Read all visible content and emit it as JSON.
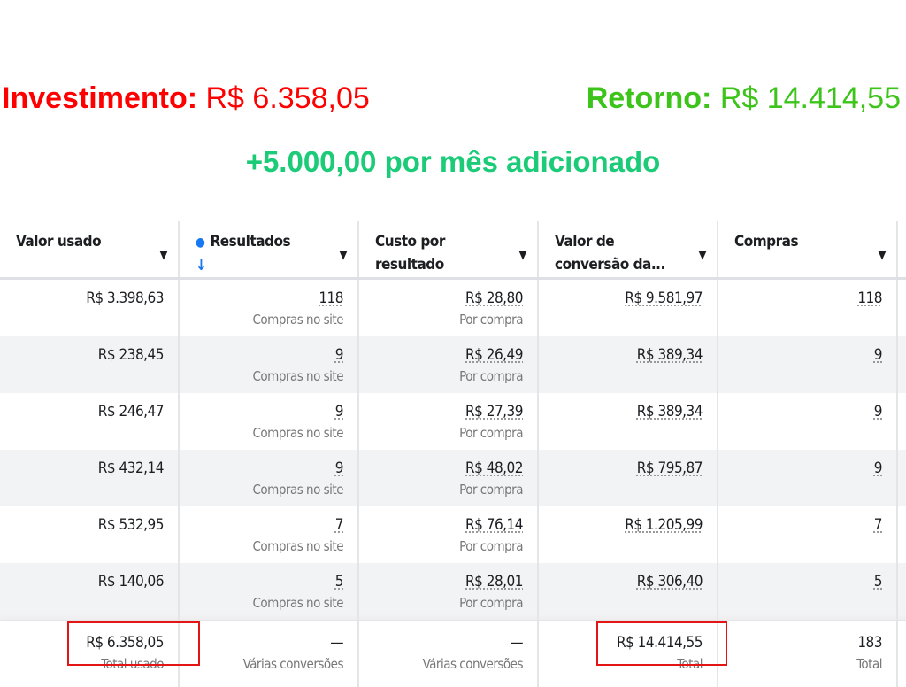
{
  "headline": {
    "investment_label": "Investimento:",
    "investment_value": "R$ 6.358,05",
    "return_label": "Retorno:",
    "return_value": "R$ 14.414,55",
    "subtitle": "+5.000,00 por mês adicionado"
  },
  "colors": {
    "investment": "#ff0000",
    "return": "#3cc41a",
    "subtitle": "#1ccb78",
    "highlight_box": "#e31515"
  },
  "table": {
    "headers": [
      "Valor usado",
      "Resultados",
      "Custo por resultado",
      "Valor de conversão da...",
      "Compras"
    ],
    "rows": [
      {
        "valor": "R$ 3.398,63",
        "resultados": "118",
        "resultados_sub": "Compras no site",
        "custo": "R$ 28,80",
        "custo_sub": "Por compra",
        "conversao": "R$ 9.581,97",
        "compras": "118"
      },
      {
        "valor": "R$ 238,45",
        "resultados": "9",
        "resultados_sub": "Compras no site",
        "custo": "R$ 26,49",
        "custo_sub": "Por compra",
        "conversao": "R$ 389,34",
        "compras": "9"
      },
      {
        "valor": "R$ 246,47",
        "resultados": "9",
        "resultados_sub": "Compras no site",
        "custo": "R$ 27,39",
        "custo_sub": "Por compra",
        "conversao": "R$ 389,34",
        "compras": "9"
      },
      {
        "valor": "R$ 432,14",
        "resultados": "9",
        "resultados_sub": "Compras no site",
        "custo": "R$ 48,02",
        "custo_sub": "Por compra",
        "conversao": "R$ 795,87",
        "compras": "9"
      },
      {
        "valor": "R$ 532,95",
        "resultados": "7",
        "resultados_sub": "Compras no site",
        "custo": "R$ 76,14",
        "custo_sub": "Por compra",
        "conversao": "R$ 1.205,99",
        "compras": "7"
      },
      {
        "valor": "R$ 140,06",
        "resultados": "5",
        "resultados_sub": "Compras no site",
        "custo": "R$ 28,01",
        "custo_sub": "Por compra",
        "conversao": "R$ 306,40",
        "compras": "5"
      }
    ],
    "totals": {
      "valor": "R$ 6.358,05",
      "valor_sub": "Total usado",
      "resultados": "—",
      "resultados_sub": "Várias conversões",
      "custo": "—",
      "custo_sub": "Várias conversões",
      "conversao": "R$ 14.414,55",
      "conversao_sub": "Total",
      "compras": "183",
      "compras_sub": "Total"
    }
  }
}
